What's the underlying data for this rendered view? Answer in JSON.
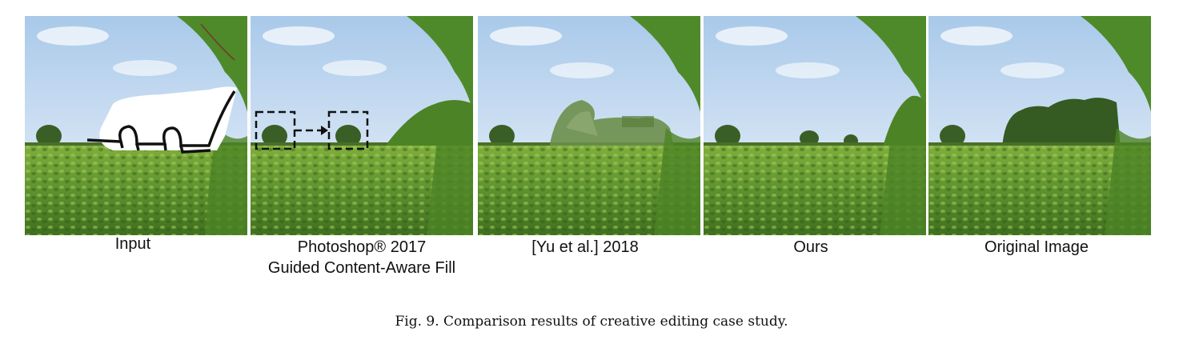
{
  "figure": {
    "panels": [
      {
        "id": "input",
        "label_lines": [
          "Input"
        ]
      },
      {
        "id": "photoshop",
        "label_lines": [
          "Photoshop® 2017",
          "Guided Content-Aware Fill"
        ]
      },
      {
        "id": "yu",
        "label_lines": [
          "[Yu et al.] 2018"
        ]
      },
      {
        "id": "ours",
        "label_lines": [
          "Ours"
        ]
      },
      {
        "id": "original",
        "label_lines": [
          "Original Image"
        ]
      }
    ],
    "caption": "Fig. 9.  Comparison results of creative editing case study."
  },
  "colors": {
    "sky_top": "#a9c9ea",
    "sky_bottom": "#eef4fa",
    "field_dark": "#3f6f1f",
    "field_light": "#7fae3c",
    "foliage": "#4f8a2a",
    "tree": "#3a5f26"
  }
}
